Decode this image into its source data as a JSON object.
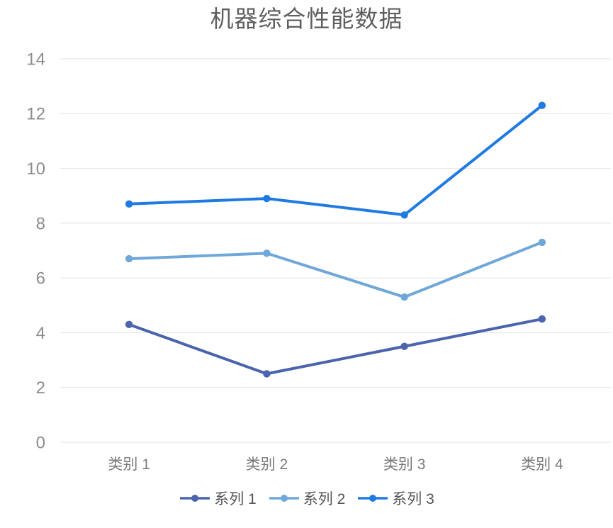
{
  "chart_data": {
    "type": "line",
    "title": "机器综合性能数据",
    "categories": [
      "类别 1",
      "类别 2",
      "类别 3",
      "类别 4"
    ],
    "series": [
      {
        "name": "系列 1",
        "color": "#4a64ad",
        "values": [
          4.3,
          2.5,
          3.5,
          4.5
        ]
      },
      {
        "name": "系列 2",
        "color": "#6fa7d8",
        "values": [
          6.7,
          6.9,
          5.3,
          7.3
        ]
      },
      {
        "name": "系列 3",
        "color": "#1f7be1",
        "values": [
          8.7,
          8.9,
          8.3,
          12.3
        ]
      }
    ],
    "xlabel": "",
    "ylabel": "",
    "ylim": [
      0,
      14
    ],
    "ytick_step": 2,
    "grid": true,
    "legend_position": "bottom",
    "grid_color": "#e2e2e2"
  }
}
